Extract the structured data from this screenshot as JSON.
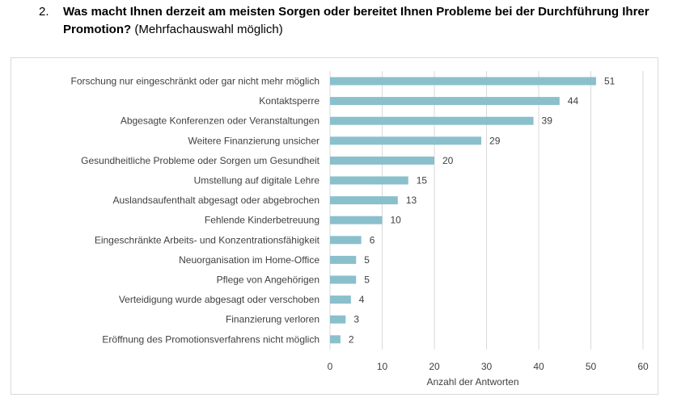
{
  "question": {
    "number": "2.",
    "text_bold": "Was macht Ihnen derzeit am meisten Sorgen oder bereitet Ihnen Probleme bei der Durchführung Ihrer Promotion?",
    "text_normal": " (Mehrfachauswahl möglich)"
  },
  "chart_data": {
    "type": "bar",
    "orientation": "horizontal",
    "categories": [
      "Forschung nur eingeschränkt oder gar nicht mehr möglich",
      "Kontaktsperre",
      "Abgesagte Konferenzen oder Veranstaltungen",
      "Weitere Finanzierung unsicher",
      "Gesundheitliche Probleme oder Sorgen um Gesundheit",
      "Umstellung auf digitale Lehre",
      "Auslandsaufenthalt abgesagt oder abgebrochen",
      "Fehlende Kinderbetreuung",
      "Eingeschränkte Arbeits- und Konzentrationsfähigkeit",
      "Neuorganisation im Home-Office",
      "Pflege von Angehörigen",
      "Verteidigung wurde abgesagt oder verschoben",
      "Finanzierung verloren",
      "Eröffnung des Promotionsverfahrens nicht möglich"
    ],
    "values": [
      51,
      44,
      39,
      29,
      20,
      15,
      13,
      10,
      6,
      5,
      5,
      4,
      3,
      2
    ],
    "xlabel": "Anzahl der Antworten",
    "xlim": [
      0,
      60
    ],
    "xticks": [
      0,
      10,
      20,
      30,
      40,
      50,
      60
    ],
    "grid": true,
    "bar_color": "#8ac0cc",
    "grid_color": "#d9d9d9"
  }
}
